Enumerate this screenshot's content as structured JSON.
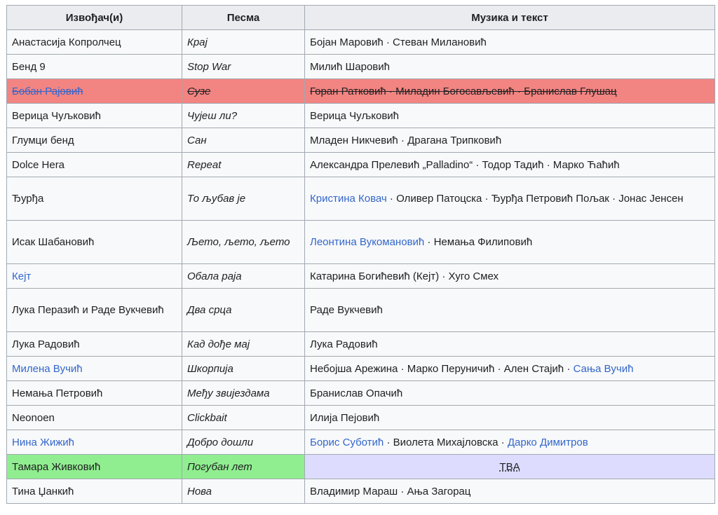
{
  "headers": {
    "artist": "Извођач(и)",
    "song": "Песма",
    "credits": "Музика и текст"
  },
  "rows": [
    {
      "artist": "Анастасија Копролчец",
      "song": "Крај",
      "credits": [
        {
          "t": "Бојан Маровић"
        },
        {
          "t": "Стеван Милановић"
        }
      ]
    },
    {
      "artist": "Бенд 9",
      "song": "Stop War",
      "credits": [
        {
          "t": "Милић Шаровић"
        }
      ]
    },
    {
      "artist": "Бобан Рајовић",
      "song": "Сузе",
      "credits": [
        {
          "t": "Горан Ратковић"
        },
        {
          "t": "Миладин Богосављевић"
        },
        {
          "t": "Бранислав Глушац"
        }
      ]
    },
    {
      "artist": "Верица Чуљковић",
      "song": "Чујеш ли?",
      "credits": [
        {
          "t": "Верица Чуљковић"
        }
      ]
    },
    {
      "artist": "Глумци бенд",
      "song": "Сан",
      "credits": [
        {
          "t": "Младен Никчевић"
        },
        {
          "t": "Драгана Трипковић"
        }
      ]
    },
    {
      "artist": "Dolce Hera",
      "song": "Repeat",
      "credits": [
        {
          "t": "Александра Прелевић „Palladino“"
        },
        {
          "t": "Тодор Тадић"
        },
        {
          "t": "Марко Ћаћић"
        }
      ]
    },
    {
      "artist": "Ђурђа",
      "song": "То љубав је",
      "credits": [
        {
          "t": "Кристина Ковач",
          "link": true
        },
        {
          "t": "Оливер Патоцска"
        },
        {
          "t": "Ђурђа Петровић Пољак"
        },
        {
          "t": "Јонас Јенсен"
        }
      ]
    },
    {
      "artist": "Исак Шабановић",
      "song": "Љето, љето, љето",
      "credits": [
        {
          "t": "Леонтина Вукомановић",
          "link": true
        },
        {
          "t": "Немања Филиповић"
        }
      ]
    },
    {
      "artist": "Кејт",
      "song": "Обала раја",
      "credits": [
        {
          "t": "Катарина Богићевић (Кејт)"
        },
        {
          "t": "Хуго Смех"
        }
      ]
    },
    {
      "artist": "Лука Перазић и Раде Вукчевић",
      "song": "Два срца",
      "credits": [
        {
          "t": "Раде Вукчевић"
        }
      ]
    },
    {
      "artist": "Лука Радовић",
      "song": "Кад дође мај",
      "credits": [
        {
          "t": "Лука Радовић"
        }
      ]
    },
    {
      "artist": "Милена Вучић",
      "song": "Шкорпија",
      "credits": [
        {
          "t": "Небојша Арежина"
        },
        {
          "t": "Марко Перуничић"
        },
        {
          "t": "Ален Стајић"
        },
        {
          "t": "Сања Вучић",
          "link": true
        }
      ]
    },
    {
      "artist": "Немања Петровић",
      "song": "Међу звијездама",
      "credits": [
        {
          "t": "Бранислав Опачић"
        }
      ]
    },
    {
      "artist": "Neonoen",
      "song": "Clickbait",
      "credits": [
        {
          "t": "Илија Пејовић"
        }
      ]
    },
    {
      "artist": "Нина Жижић",
      "song": "Добро дошли",
      "credits": [
        {
          "t": "Борис Суботић",
          "link": true
        },
        {
          "t": "Виолета Михајловска"
        },
        {
          "t": "Дарко Димитров",
          "link": true
        }
      ]
    },
    {
      "artist": "Тамара Живковић",
      "song": "Погубан лет",
      "credits_tba": "TBA"
    },
    {
      "artist": "Тина Џанкић",
      "song": "Нова",
      "credits": [
        {
          "t": "Владимир Мараш"
        },
        {
          "t": "Ања Загорац"
        }
      ]
    }
  ],
  "separator": " · ",
  "colors": {
    "link": "#3366cc",
    "header_bg": "#eaecf0",
    "cell_bg": "#f8f9fa",
    "border": "#a2a9b1",
    "removed_row": "#f28482",
    "winner_row": "#90ee90",
    "tba_cell": "#dddcff"
  }
}
